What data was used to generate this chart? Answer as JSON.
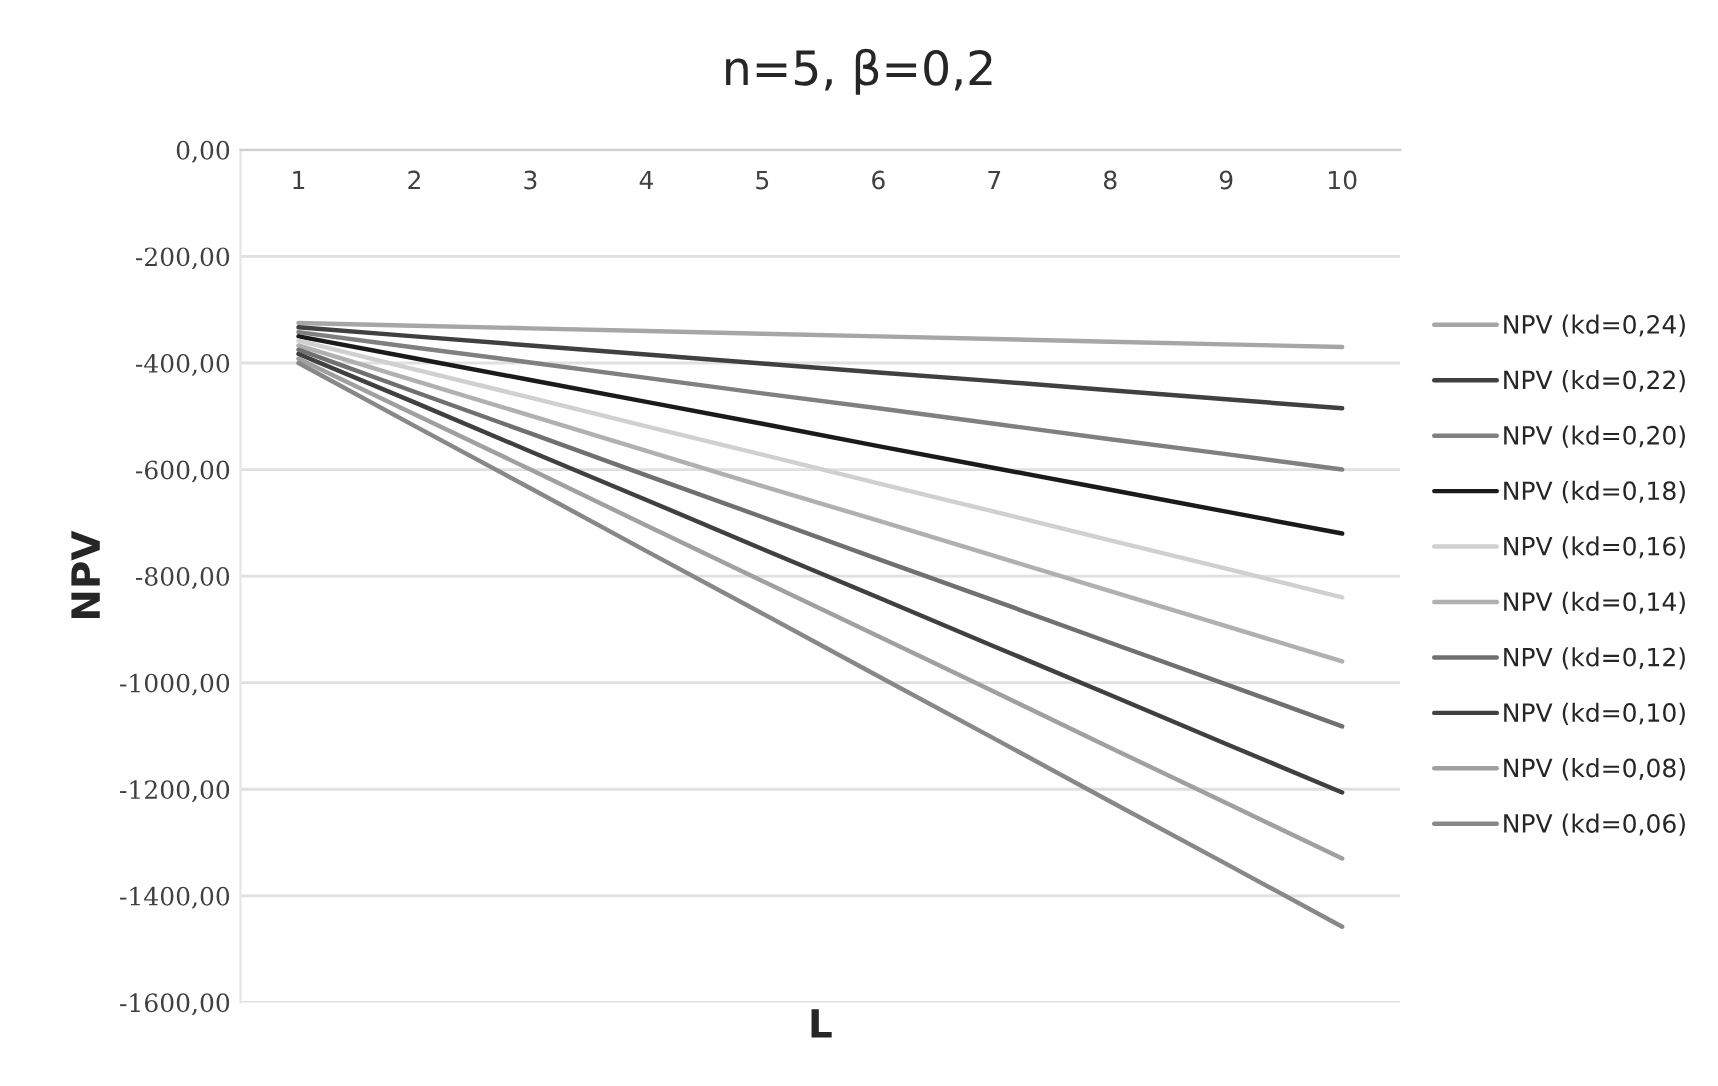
{
  "chart_data": {
    "type": "line",
    "title": "n=5, β=0,2",
    "xlabel": "L",
    "ylabel": "NPV",
    "categories": [
      "1",
      "2",
      "3",
      "4",
      "5",
      "6",
      "7",
      "8",
      "9",
      "10"
    ],
    "ylim": [
      -1600,
      0
    ],
    "yticks": [
      {
        "value": 0,
        "label": "0,00"
      },
      {
        "value": -200,
        "label": "-200,00"
      },
      {
        "value": -400,
        "label": "-400,00"
      },
      {
        "value": -600,
        "label": "-600,00"
      },
      {
        "value": -800,
        "label": "-800,00"
      },
      {
        "value": -1000,
        "label": "-1000,00"
      },
      {
        "value": -1200,
        "label": "-1200,00"
      },
      {
        "value": -1400,
        "label": "-1400,00"
      },
      {
        "value": -1600,
        "label": "-1600,00"
      }
    ],
    "grid": "y",
    "legend": "right",
    "marker": "none",
    "line_style": "solid",
    "series": [
      {
        "name": "NPV (kd=0,24)",
        "color": "#a6a6a6",
        "values": [
          -325,
          -330,
          -335,
          -340,
          -345,
          -350,
          -355,
          -360,
          -365,
          -370
        ]
      },
      {
        "name": "NPV (kd=0,22)",
        "color": "#404040",
        "values": [
          -333,
          -350,
          -367,
          -384,
          -401,
          -418,
          -434,
          -451,
          -468,
          -485
        ]
      },
      {
        "name": "NPV (kd=0,20)",
        "color": "#808080",
        "values": [
          -342,
          -371,
          -399,
          -428,
          -457,
          -485,
          -514,
          -543,
          -571,
          -600
        ]
      },
      {
        "name": "NPV (kd=0,18)",
        "color": "#1a1a1a",
        "values": [
          -350,
          -391,
          -432,
          -473,
          -514,
          -556,
          -597,
          -638,
          -679,
          -720
        ]
      },
      {
        "name": "NPV (kd=0,16)",
        "color": "#d0d0d0",
        "values": [
          -358,
          -412,
          -465,
          -519,
          -572,
          -626,
          -679,
          -733,
          -786,
          -840
        ]
      },
      {
        "name": "NPV (kd=0,14)",
        "color": "#b0b0b0",
        "values": [
          -367,
          -433,
          -499,
          -565,
          -631,
          -696,
          -762,
          -828,
          -894,
          -960
        ]
      },
      {
        "name": "NPV (kd=0,12)",
        "color": "#707070",
        "values": [
          -375,
          -454,
          -532,
          -611,
          -689,
          -768,
          -846,
          -925,
          -1003,
          -1082
        ]
      },
      {
        "name": "NPV (kd=0,10)",
        "color": "#404040",
        "values": [
          -383,
          -474,
          -566,
          -657,
          -749,
          -840,
          -932,
          -1023,
          -1115,
          -1206
        ]
      },
      {
        "name": "NPV (kd=0,08)",
        "color": "#a0a0a0",
        "values": [
          -392,
          -496,
          -600,
          -705,
          -809,
          -913,
          -1017,
          -1122,
          -1226,
          -1330
        ]
      },
      {
        "name": "NPV (kd=0,06)",
        "color": "#888888",
        "values": [
          -400,
          -518,
          -635,
          -753,
          -870,
          -988,
          -1105,
          -1223,
          -1340,
          -1458
        ]
      }
    ]
  }
}
